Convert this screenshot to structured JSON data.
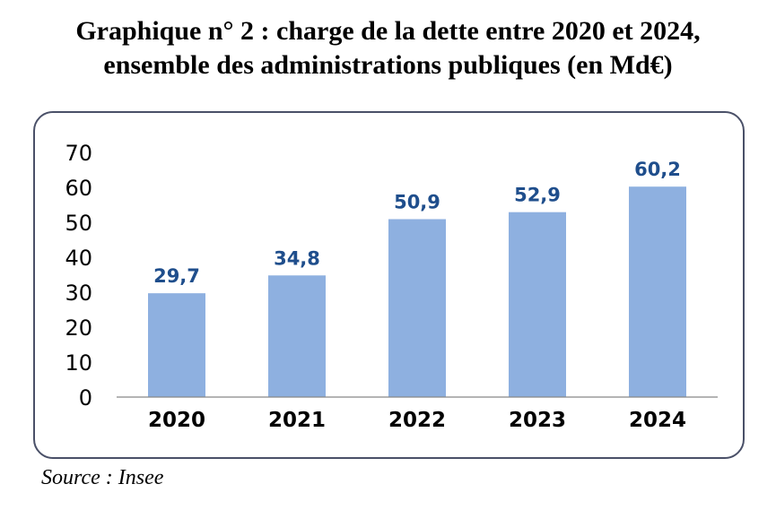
{
  "header": {
    "title_line1": "Graphique n° 2 : charge de la dette entre 2020 et 2024,",
    "title_line2": "ensemble des administrations publiques (en Md€)"
  },
  "footer": {
    "source": "Source : Insee"
  },
  "colors": {
    "bar": "#8eb0e0",
    "label": "#1f4e8c",
    "axis": "#000000",
    "frame": "#4a5068"
  },
  "chart_data": {
    "type": "bar",
    "title": "Graphique n° 2 : charge de la dette entre 2020 et 2024, ensemble des administrations publiques (en Md€)",
    "categories": [
      "2020",
      "2021",
      "2022",
      "2023",
      "2024"
    ],
    "values": [
      29.7,
      34.8,
      50.9,
      52.9,
      60.2
    ],
    "value_labels": [
      "29,7",
      "34,8",
      "50,9",
      "52,9",
      "60,2"
    ],
    "ylim": [
      0,
      70
    ],
    "yticks": [
      "0",
      "10",
      "20",
      "30",
      "40",
      "50",
      "60",
      "70"
    ],
    "grid": false,
    "legend": "none"
  }
}
